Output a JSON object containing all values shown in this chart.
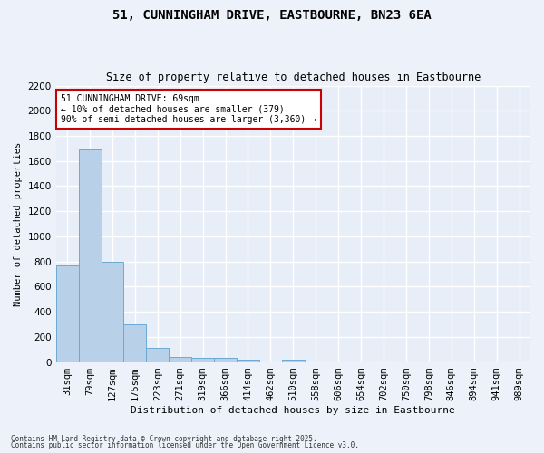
{
  "title": "51, CUNNINGHAM DRIVE, EASTBOURNE, BN23 6EA",
  "subtitle": "Size of property relative to detached houses in Eastbourne",
  "xlabel": "Distribution of detached houses by size in Eastbourne",
  "ylabel": "Number of detached properties",
  "categories": [
    "31sqm",
    "79sqm",
    "127sqm",
    "175sqm",
    "223sqm",
    "271sqm",
    "319sqm",
    "366sqm",
    "414sqm",
    "462sqm",
    "510sqm",
    "558sqm",
    "606sqm",
    "654sqm",
    "702sqm",
    "750sqm",
    "798sqm",
    "846sqm",
    "894sqm",
    "941sqm",
    "989sqm"
  ],
  "values": [
    770,
    1690,
    800,
    300,
    110,
    42,
    35,
    30,
    20,
    0,
    20,
    0,
    0,
    0,
    0,
    0,
    0,
    0,
    0,
    0,
    0
  ],
  "bar_color": "#b8d0e8",
  "bar_edge_color": "#6aaad4",
  "background_color": "#e8eef8",
  "grid_color": "#ffffff",
  "fig_background": "#edf2fa",
  "ylim": [
    0,
    2200
  ],
  "yticks": [
    0,
    200,
    400,
    600,
    800,
    1000,
    1200,
    1400,
    1600,
    1800,
    2000,
    2200
  ],
  "annotation_title": "51 CUNNINGHAM DRIVE: 69sqm",
  "annotation_line1": "← 10% of detached houses are smaller (379)",
  "annotation_line2": "90% of semi-detached houses are larger (3,360) →",
  "annotation_box_color": "#ffffff",
  "annotation_border_color": "#cc0000",
  "footer1": "Contains HM Land Registry data © Crown copyright and database right 2025.",
  "footer2": "Contains public sector information licensed under the Open Government Licence v3.0."
}
